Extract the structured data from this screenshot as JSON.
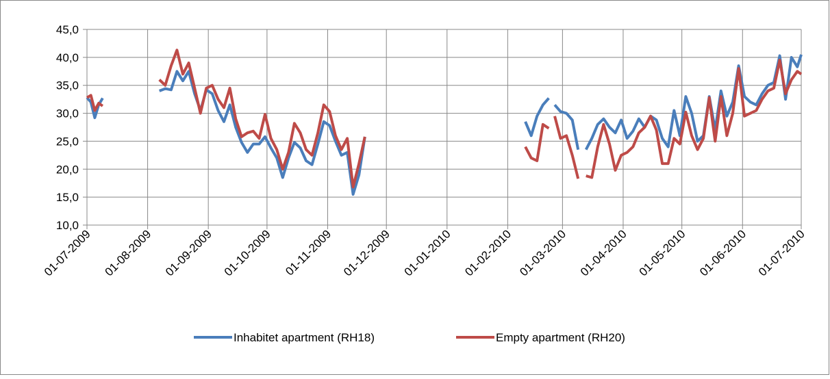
{
  "chart_data": {
    "type": "line",
    "x": [
      "01-07-2009",
      "03-07-2009",
      "05-07-2009",
      "07-07-2009",
      "09-07-2009",
      "20-07-2009",
      "07-08-2009",
      "10-08-2009",
      "13-08-2009",
      "16-08-2009",
      "19-08-2009",
      "22-08-2009",
      "25-08-2009",
      "28-08-2009",
      "31-08-2009",
      "03-09-2009",
      "06-09-2009",
      "09-09-2009",
      "12-09-2009",
      "15-09-2009",
      "18-09-2009",
      "21-09-2009",
      "24-09-2009",
      "27-09-2009",
      "30-09-2009",
      "03-10-2009",
      "06-10-2009",
      "09-10-2009",
      "12-10-2009",
      "15-10-2009",
      "18-10-2009",
      "21-10-2009",
      "24-10-2009",
      "27-10-2009",
      "30-10-2009",
      "02-11-2009",
      "05-11-2009",
      "08-11-2009",
      "11-11-2009",
      "14-11-2009",
      "17-11-2009",
      "20-11-2009",
      "15-12-2009",
      "10-02-2010",
      "13-02-2010",
      "16-02-2010",
      "19-02-2010",
      "22-02-2010",
      "23-02-2010",
      "25-02-2010",
      "28-02-2010",
      "03-03-2010",
      "06-03-2010",
      "09-03-2010",
      "11-03-2010",
      "13-03-2010",
      "16-03-2010",
      "19-03-2010",
      "22-03-2010",
      "25-03-2010",
      "28-03-2010",
      "31-03-2010",
      "03-04-2010",
      "06-04-2010",
      "09-04-2010",
      "12-04-2010",
      "15-04-2010",
      "18-04-2010",
      "21-04-2010",
      "24-04-2010",
      "27-04-2010",
      "30-04-2010",
      "03-05-2010",
      "06-05-2010",
      "09-05-2010",
      "12-05-2010",
      "15-05-2010",
      "18-05-2010",
      "21-05-2010",
      "24-05-2010",
      "27-05-2010",
      "30-05-2010",
      "02-06-2010",
      "05-06-2010",
      "08-06-2010",
      "11-06-2010",
      "14-06-2010",
      "17-06-2010",
      "20-06-2010",
      "23-06-2010",
      "26-06-2010",
      "29-06-2010",
      "01-07-2010"
    ],
    "series": [
      {
        "name": "Inhabitet apartment (RH18)",
        "color": "#4a7ebb",
        "values": [
          32.8,
          32,
          29.2,
          31.5,
          32.7,
          null,
          34.0,
          34.4,
          34.2,
          37.5,
          35.8,
          37.5,
          33.5,
          30.5,
          34.2,
          33.5,
          30.5,
          28.5,
          31.5,
          27.5,
          24.8,
          23.0,
          24.5,
          24.5,
          25.8,
          23.8,
          22.0,
          18.5,
          22.0,
          24.8,
          23.8,
          21.5,
          20.8,
          24.5,
          28.5,
          27.8,
          25.0,
          22.5,
          23.0,
          15.5,
          19.0,
          25.8,
          null,
          28.5,
          26.0,
          29.5,
          31.5,
          32.7,
          null,
          31.5,
          30.3,
          30.0,
          28.8,
          23.5,
          null,
          23.5,
          25.5,
          28.0,
          29.0,
          27.5,
          26.5,
          28.8,
          25.5,
          26.8,
          29.0,
          27.5,
          29.5,
          28.8,
          25.5,
          24.0,
          30.5,
          26.0,
          33.0,
          30.0,
          25.0,
          26.0,
          33.0,
          27.0,
          34.0,
          29.5,
          32.0,
          38.5,
          33.0,
          32.0,
          31.5,
          33.5,
          35.0,
          35.5,
          40.3,
          32.5,
          40.0,
          38.3,
          40.5
        ]
      },
      {
        "name": "Empty apartment (RH20)",
        "color": "#be4b48",
        "values": [
          32.8,
          33.2,
          30.5,
          31.8,
          31.3,
          null,
          36.0,
          35.0,
          38.5,
          41.3,
          37.0,
          39.0,
          34.5,
          30.0,
          34.5,
          35.0,
          32.5,
          31.0,
          34.5,
          29.0,
          25.8,
          26.5,
          26.8,
          25.5,
          29.8,
          25.5,
          23.5,
          20.0,
          23.0,
          28.2,
          26.5,
          23.5,
          22.5,
          26.5,
          31.5,
          30.3,
          26.0,
          23.5,
          25.5,
          16.8,
          21.0,
          25.8,
          null,
          24.0,
          22.0,
          21.5,
          28.0,
          27.3,
          null,
          29.5,
          25.5,
          26.0,
          22.5,
          18.3,
          null,
          18.8,
          18.5,
          24.0,
          28.0,
          24.5,
          19.8,
          22.5,
          23.0,
          24.0,
          26.5,
          27.5,
          29.5,
          27.0,
          21.0,
          21.0,
          25.5,
          24.5,
          30.2,
          26.0,
          23.5,
          25.5,
          32.8,
          25.0,
          33.0,
          26.0,
          30.0,
          38.0,
          29.5,
          30.0,
          30.5,
          32.5,
          34.0,
          34.5,
          39.5,
          33.5,
          36.0,
          37.5,
          37.0
        ]
      }
    ],
    "xlim": [
      "01-07-2009",
      "01-07-2010"
    ],
    "xticks": [
      "01-07-2009",
      "01-08-2009",
      "01-09-2009",
      "01-10-2009",
      "01-11-2009",
      "01-12-2009",
      "01-01-2010",
      "01-02-2010",
      "01-03-2010",
      "01-04-2010",
      "01-05-2010",
      "01-06-2010",
      "01-07-2010"
    ],
    "ylim": [
      10,
      45
    ],
    "yticks": [
      {
        "value": 10,
        "label": "10,0"
      },
      {
        "value": 15,
        "label": "15,0"
      },
      {
        "value": 20,
        "label": "20,0"
      },
      {
        "value": 25,
        "label": "25,0"
      },
      {
        "value": 30,
        "label": "30,0"
      },
      {
        "value": 35,
        "label": "35,0"
      },
      {
        "value": 40,
        "label": "40,0"
      },
      {
        "value": 45,
        "label": "45,0"
      }
    ],
    "grid": true,
    "legend": "bottom"
  }
}
